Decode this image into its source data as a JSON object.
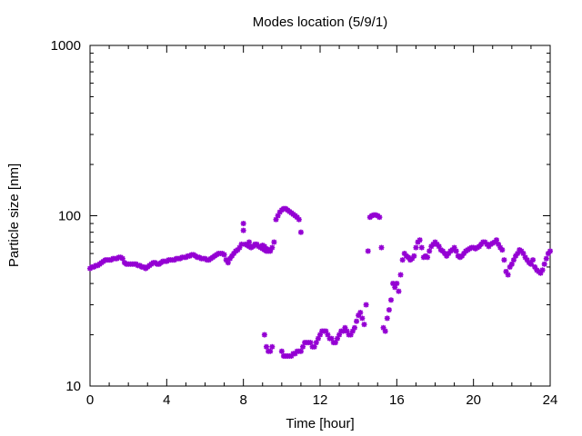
{
  "chart_data": {
    "type": "scatter",
    "title": "Modes location (5/9/1)",
    "xlabel": "Time [hour]",
    "ylabel": "Particle size [nm]",
    "xlim": [
      0,
      24
    ],
    "ylim": [
      10,
      1000
    ],
    "y_scale": "log",
    "grid": false,
    "legend": "none",
    "marker_color": "#9400d3",
    "x_ticks": [
      {
        "value": 0,
        "label": "0"
      },
      {
        "value": 4,
        "label": "4"
      },
      {
        "value": 8,
        "label": "8"
      },
      {
        "value": 12,
        "label": "12"
      },
      {
        "value": 16,
        "label": "16"
      },
      {
        "value": 20,
        "label": "20"
      },
      {
        "value": 24,
        "label": "24"
      }
    ],
    "y_ticks": [
      {
        "value": 10,
        "label": "10"
      },
      {
        "value": 100,
        "label": "100"
      },
      {
        "value": 1000,
        "label": "1000"
      }
    ],
    "series": [
      {
        "x": [
          0.0,
          0.1,
          0.2,
          0.3,
          0.4,
          0.5,
          0.6,
          0.7,
          0.8,
          0.9,
          1.0,
          1.1,
          1.2,
          1.3,
          1.4,
          1.5,
          1.6,
          1.7,
          1.8,
          1.9,
          2.0,
          2.1,
          2.2,
          2.3,
          2.4,
          2.5,
          2.6,
          2.7,
          2.8,
          2.9,
          3.0,
          3.1,
          3.2,
          3.3,
          3.4,
          3.5,
          3.6,
          3.7,
          3.8,
          3.9,
          4.0,
          4.1,
          4.2,
          4.3,
          4.4,
          4.5,
          4.6,
          4.7,
          4.8,
          4.9,
          5.0,
          5.1,
          5.2,
          5.3,
          5.4,
          5.5,
          5.6,
          5.7,
          5.8,
          5.9,
          6.0,
          6.1,
          6.2,
          6.3,
          6.4,
          6.5,
          6.6,
          6.7,
          6.8,
          6.9,
          7.0,
          7.1,
          7.2,
          7.3,
          7.4,
          7.5,
          7.6,
          7.7,
          7.8,
          7.9,
          8.0,
          8.1,
          8.2,
          8.3,
          8.4,
          8.5,
          8.6,
          8.7,
          8.8,
          8.9,
          9.0,
          9.1,
          9.2,
          9.3,
          9.4,
          9.5,
          9.6,
          9.7,
          9.8,
          9.9,
          10.0,
          10.1,
          10.2,
          10.3,
          10.4,
          10.5,
          10.6,
          10.7,
          10.8,
          10.9,
          11.0
        ],
        "y": [
          49,
          50,
          50,
          51,
          51,
          52,
          53,
          54,
          55,
          55,
          55,
          55,
          56,
          56,
          56,
          57,
          57,
          56,
          53,
          52,
          52,
          52,
          52,
          52,
          52,
          51,
          51,
          50,
          50,
          49,
          50,
          51,
          52,
          53,
          53,
          52,
          52,
          53,
          54,
          54,
          54,
          55,
          55,
          55,
          55,
          56,
          56,
          56,
          57,
          57,
          57,
          58,
          58,
          59,
          59,
          58,
          57,
          57,
          56,
          56,
          56,
          55,
          55,
          56,
          57,
          58,
          59,
          60,
          60,
          60,
          59,
          55,
          53,
          56,
          58,
          60,
          62,
          63,
          65,
          68,
          90,
          68,
          67,
          66,
          65,
          66,
          67,
          68,
          66,
          65,
          64,
          63,
          62,
          62,
          63,
          65,
          70,
          95,
          100,
          105,
          108,
          110,
          110,
          108,
          106,
          104,
          102,
          100,
          98,
          95,
          80
        ]
      },
      {
        "x": [
          8.0,
          8.3,
          8.6,
          9.0,
          9.1,
          9.2,
          9.3,
          9.4
        ],
        "y": [
          82,
          70,
          68,
          67,
          66,
          64,
          63,
          62
        ]
      },
      {
        "x": [
          9.1,
          9.2,
          9.3,
          9.4,
          9.5,
          10.0,
          10.1,
          10.2,
          10.3,
          10.4,
          10.5,
          10.6,
          10.7,
          10.8,
          10.9,
          11.0,
          11.1,
          11.2,
          11.3,
          11.4,
          11.5,
          11.6,
          11.7,
          11.8,
          11.9,
          12.0,
          12.1,
          12.2,
          12.3,
          12.4,
          12.5,
          12.6,
          12.7,
          12.8,
          12.9,
          13.0,
          13.1,
          13.2,
          13.3,
          13.4,
          13.5,
          13.6,
          13.7,
          13.8,
          13.9,
          14.0,
          14.1,
          14.2,
          14.3,
          14.4,
          14.5
        ],
        "y": [
          20,
          17,
          16,
          16,
          17,
          16,
          15,
          15,
          15,
          15,
          15,
          15.5,
          15.5,
          16,
          16,
          16,
          17,
          18,
          18,
          18,
          18,
          17,
          17,
          18,
          19,
          20,
          21,
          21,
          21,
          20,
          19,
          19,
          18,
          18,
          19,
          20,
          21,
          21,
          22,
          21,
          20,
          20,
          21,
          22,
          24,
          26,
          27,
          25,
          23,
          30,
          62
        ]
      },
      {
        "x": [
          14.6,
          14.7,
          14.8,
          14.9,
          15.0,
          15.1,
          15.2
        ],
        "y": [
          98,
          100,
          101,
          101,
          100,
          98,
          65
        ]
      },
      {
        "x": [
          15.3,
          15.4,
          15.5,
          15.6,
          15.7,
          15.8,
          15.9,
          16.0,
          16.1,
          16.2,
          16.3,
          16.4,
          16.5,
          16.6,
          16.7,
          16.8,
          16.9,
          17.0,
          17.1,
          17.2,
          17.3,
          17.4,
          17.5,
          17.6,
          17.7,
          17.8,
          17.9,
          18.0,
          18.1,
          18.2,
          18.3,
          18.4,
          18.5,
          18.6,
          18.7,
          18.8,
          18.9,
          19.0,
          19.1,
          19.2,
          19.3,
          19.4,
          19.5,
          19.6,
          19.7,
          19.8,
          19.9,
          20.0,
          20.1,
          20.2,
          20.3,
          20.4,
          20.5,
          20.6,
          20.7,
          20.8,
          20.9,
          21.0,
          21.1,
          21.2,
          21.3,
          21.4,
          21.5,
          21.6,
          21.7,
          21.8,
          21.9,
          22.0,
          22.1,
          22.2,
          22.3,
          22.4,
          22.5,
          22.6,
          22.7,
          22.8,
          22.9,
          23.0,
          23.1,
          23.2,
          23.3,
          23.4,
          23.5,
          23.6,
          23.7,
          23.8,
          23.9,
          24.0
        ],
        "y": [
          22,
          21,
          25,
          28,
          32,
          40,
          38,
          40,
          36,
          45,
          55,
          60,
          58,
          57,
          55,
          56,
          58,
          65,
          70,
          72,
          65,
          57,
          58,
          57,
          62,
          66,
          68,
          70,
          68,
          66,
          63,
          62,
          60,
          58,
          60,
          62,
          63,
          65,
          62,
          58,
          57,
          58,
          60,
          62,
          63,
          64,
          65,
          65,
          64,
          65,
          66,
          68,
          70,
          70,
          68,
          66,
          68,
          69,
          70,
          72,
          68,
          65,
          63,
          55,
          47,
          45,
          50,
          52,
          55,
          58,
          60,
          63,
          62,
          60,
          57,
          55,
          53,
          52,
          55,
          50,
          48,
          47,
          46,
          48,
          52,
          56,
          60,
          62
        ]
      }
    ]
  }
}
